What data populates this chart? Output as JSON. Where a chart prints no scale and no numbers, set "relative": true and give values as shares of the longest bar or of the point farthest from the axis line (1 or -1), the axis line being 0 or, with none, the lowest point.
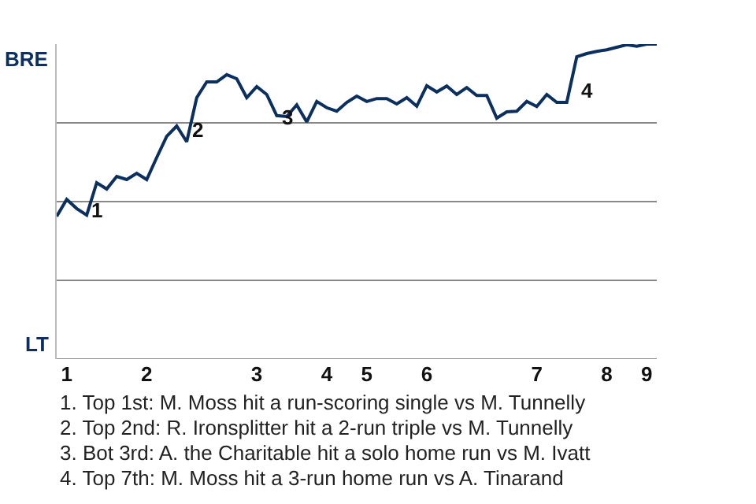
{
  "chart_data": {
    "type": "line",
    "relative": true,
    "categories": [
      null,
      "1",
      null,
      null,
      null,
      null,
      null,
      null,
      null,
      "2",
      null,
      null,
      null,
      null,
      null,
      null,
      null,
      null,
      null,
      null,
      "3",
      null,
      null,
      null,
      null,
      null,
      null,
      "4",
      null,
      null,
      null,
      "5",
      null,
      null,
      null,
      null,
      null,
      "6",
      null,
      null,
      null,
      null,
      null,
      null,
      null,
      null,
      null,
      null,
      "7",
      null,
      null,
      null,
      null,
      null,
      null,
      "8",
      null,
      null,
      null,
      "9",
      null
    ],
    "values": [
      0.453,
      0.507,
      0.478,
      0.457,
      0.56,
      0.54,
      0.58,
      0.57,
      0.59,
      0.57,
      0.64,
      0.707,
      0.74,
      0.69,
      0.83,
      0.88,
      0.88,
      0.903,
      0.89,
      0.83,
      0.865,
      0.84,
      0.773,
      0.77,
      0.807,
      0.753,
      0.818,
      0.798,
      0.787,
      0.815,
      0.835,
      0.818,
      0.827,
      0.827,
      0.81,
      0.83,
      0.803,
      0.868,
      0.848,
      0.867,
      0.84,
      0.862,
      0.837,
      0.837,
      0.765,
      0.785,
      0.787,
      0.818,
      0.802,
      0.84,
      0.815,
      0.815,
      0.96,
      0.97,
      0.977,
      0.982,
      0.99,
      0.998,
      0.993,
      1,
      1
    ],
    "color": "#0b2f5e",
    "grid": "y",
    "annotations": [
      "BRE",
      "LT",
      "1",
      "2",
      "3",
      "4",
      "1. Top 1st: M. Moss hit a run-scoring single vs M. Tunnelly",
      "2. Top 2nd: R. Ironsplitter hit a 2-run triple vs M. Tunnelly",
      "3. Bot 3rd: A. the Charitable hit a solo home run vs M. Ivatt",
      "4. Top 7th: M. Moss hit a 3-run home run vs A. Tinarand"
    ]
  }
}
